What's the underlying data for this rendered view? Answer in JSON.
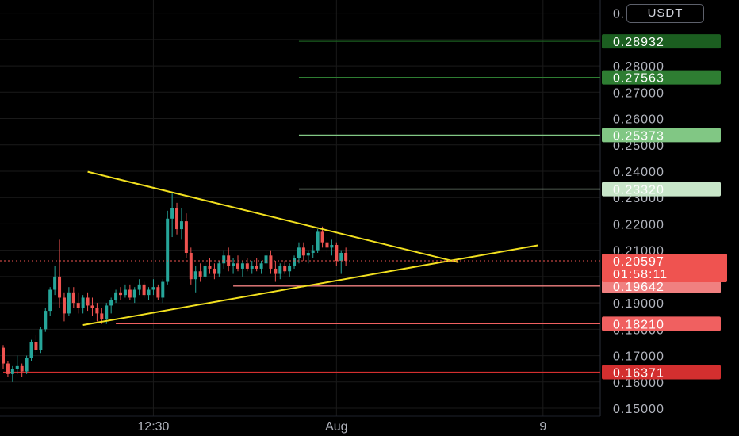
{
  "currency": "USDT",
  "colors": {
    "background": "#000000",
    "grid": "#1a1a1a",
    "up": "#26a69a",
    "down": "#ef5350",
    "trendline": "#f2e01f"
  },
  "chart_data": {
    "type": "candlestick",
    "ylim": [
      0.147,
      0.305
    ],
    "y_ticks": [
      "0.15000",
      "0.16000",
      "0.17000",
      "0.18000",
      "0.19000",
      "0.20000",
      "0.21000",
      "0.22000",
      "0.23000",
      "0.24000",
      "0.25000",
      "0.26000",
      "0.27000",
      "0.28000",
      "0.29000",
      "0.30000"
    ],
    "x_ticks": [
      {
        "label": "12:30",
        "index": 32
      },
      {
        "label": "Aug",
        "index": 71
      },
      {
        "label": "9",
        "index": 115
      }
    ],
    "last_price": "0.20597",
    "countdown": "01:58:11",
    "candles": [
      [
        0.173,
        0.174,
        0.165,
        0.167
      ],
      [
        0.167,
        0.168,
        0.162,
        0.163
      ],
      [
        0.163,
        0.166,
        0.16,
        0.165
      ],
      [
        0.165,
        0.17,
        0.163,
        0.166
      ],
      [
        0.166,
        0.167,
        0.162,
        0.164
      ],
      [
        0.164,
        0.17,
        0.163,
        0.169
      ],
      [
        0.169,
        0.176,
        0.168,
        0.175
      ],
      [
        0.175,
        0.178,
        0.171,
        0.172
      ],
      [
        0.172,
        0.181,
        0.171,
        0.18
      ],
      [
        0.18,
        0.188,
        0.179,
        0.187
      ],
      [
        0.187,
        0.196,
        0.185,
        0.195
      ],
      [
        0.195,
        0.204,
        0.193,
        0.2
      ],
      [
        0.2,
        0.214,
        0.188,
        0.192
      ],
      [
        0.192,
        0.194,
        0.183,
        0.186
      ],
      [
        0.186,
        0.196,
        0.185,
        0.194
      ],
      [
        0.194,
        0.196,
        0.188,
        0.19
      ],
      [
        0.19,
        0.194,
        0.186,
        0.188
      ],
      [
        0.188,
        0.193,
        0.186,
        0.192
      ],
      [
        0.192,
        0.194,
        0.187,
        0.189
      ],
      [
        0.189,
        0.192,
        0.185,
        0.188
      ],
      [
        0.188,
        0.19,
        0.183,
        0.186
      ],
      [
        0.186,
        0.188,
        0.182,
        0.184
      ],
      [
        0.184,
        0.19,
        0.182,
        0.189
      ],
      [
        0.189,
        0.192,
        0.186,
        0.191
      ],
      [
        0.191,
        0.195,
        0.19,
        0.194
      ],
      [
        0.194,
        0.196,
        0.191,
        0.193
      ],
      [
        0.193,
        0.197,
        0.192,
        0.195
      ],
      [
        0.195,
        0.197,
        0.191,
        0.192
      ],
      [
        0.192,
        0.196,
        0.19,
        0.195
      ],
      [
        0.195,
        0.199,
        0.193,
        0.197
      ],
      [
        0.197,
        0.198,
        0.192,
        0.193
      ],
      [
        0.193,
        0.196,
        0.191,
        0.195
      ],
      [
        0.195,
        0.199,
        0.193,
        0.196
      ],
      [
        0.196,
        0.197,
        0.191,
        0.192
      ],
      [
        0.192,
        0.199,
        0.19,
        0.198
      ],
      [
        0.198,
        0.225,
        0.197,
        0.222
      ],
      [
        0.222,
        0.232,
        0.215,
        0.226
      ],
      [
        0.226,
        0.228,
        0.216,
        0.218
      ],
      [
        0.218,
        0.226,
        0.214,
        0.221
      ],
      [
        0.221,
        0.224,
        0.207,
        0.209
      ],
      [
        0.209,
        0.211,
        0.197,
        0.199
      ],
      [
        0.199,
        0.204,
        0.194,
        0.202
      ],
      [
        0.202,
        0.205,
        0.198,
        0.2
      ],
      [
        0.2,
        0.206,
        0.199,
        0.204
      ],
      [
        0.204,
        0.207,
        0.201,
        0.203
      ],
      [
        0.203,
        0.205,
        0.199,
        0.201
      ],
      [
        0.201,
        0.206,
        0.2,
        0.205
      ],
      [
        0.205,
        0.21,
        0.203,
        0.208
      ],
      [
        0.208,
        0.211,
        0.202,
        0.204
      ],
      [
        0.204,
        0.207,
        0.201,
        0.205
      ],
      [
        0.205,
        0.208,
        0.202,
        0.203
      ],
      [
        0.203,
        0.206,
        0.2,
        0.205
      ],
      [
        0.205,
        0.207,
        0.202,
        0.203
      ],
      [
        0.203,
        0.206,
        0.201,
        0.204
      ],
      [
        0.204,
        0.207,
        0.202,
        0.203
      ],
      [
        0.203,
        0.206,
        0.201,
        0.205
      ],
      [
        0.205,
        0.21,
        0.203,
        0.208
      ],
      [
        0.208,
        0.21,
        0.201,
        0.203
      ],
      [
        0.203,
        0.206,
        0.198,
        0.201
      ],
      [
        0.201,
        0.205,
        0.199,
        0.204
      ],
      [
        0.204,
        0.206,
        0.201,
        0.202
      ],
      [
        0.202,
        0.205,
        0.2,
        0.204
      ],
      [
        0.204,
        0.208,
        0.203,
        0.207
      ],
      [
        0.207,
        0.213,
        0.205,
        0.211
      ],
      [
        0.211,
        0.213,
        0.206,
        0.208
      ],
      [
        0.208,
        0.21,
        0.205,
        0.209
      ],
      [
        0.209,
        0.212,
        0.207,
        0.21
      ],
      [
        0.21,
        0.218,
        0.209,
        0.217
      ],
      [
        0.217,
        0.219,
        0.211,
        0.213
      ],
      [
        0.213,
        0.215,
        0.209,
        0.211
      ],
      [
        0.211,
        0.214,
        0.208,
        0.212
      ],
      [
        0.212,
        0.213,
        0.204,
        0.206
      ],
      [
        0.206,
        0.21,
        0.201,
        0.209
      ],
      [
        0.209,
        0.211,
        0.204,
        0.206
      ]
    ],
    "trendlines": [
      {
        "name": "resistance",
        "from": {
          "index": 18,
          "value": 0.2398
        },
        "to": {
          "index": 97,
          "value": 0.2054
        }
      },
      {
        "name": "support",
        "from": {
          "index": 17,
          "value": 0.1816
        },
        "to": {
          "index": 114,
          "value": 0.2119
        }
      }
    ],
    "horizontal_levels": [
      {
        "value": "0.28932",
        "color": "#1b5e20",
        "start_index": 63
      },
      {
        "value": "0.27563",
        "color": "#2e7d32",
        "start_index": 63
      },
      {
        "value": "0.25373",
        "color": "#81c784",
        "start_index": 63
      },
      {
        "value": "0.23320",
        "color": "#c8e6c9",
        "start_index": 63
      },
      {
        "value": "0.19642",
        "color": "#f08080",
        "start_index": 49
      },
      {
        "value": "0.18210",
        "color": "#f06060",
        "start_index": 24
      },
      {
        "value": "0.16371",
        "color": "#d32f2f",
        "start_index": 0
      }
    ]
  }
}
